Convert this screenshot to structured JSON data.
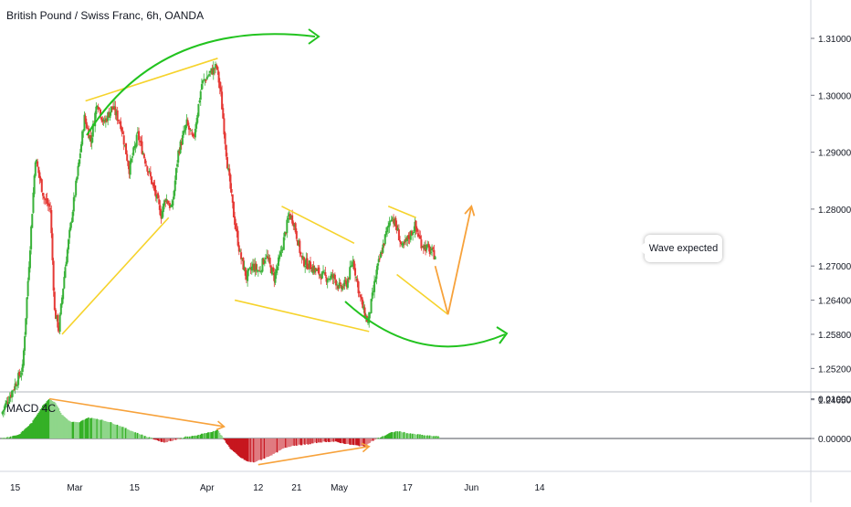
{
  "header": {
    "symbol_title": "British Pound / Swiss Franc, 6h, OANDA"
  },
  "indicator": {
    "title": "MACD 4C"
  },
  "annotation": {
    "note": "Wave expected"
  },
  "colors": {
    "up": "#26a69a",
    "up_bright": "#3ab23a",
    "down": "#e53935",
    "trend_line": "#f6d32d",
    "arc_green": "#22c31f",
    "projection": "#f7a23b",
    "macd_green": "#35b026",
    "macd_red": "#c7161f"
  },
  "chart_data": [
    {
      "type": "candlestick",
      "title": "British Pound / Swiss Franc, 6h, OANDA",
      "y_ticks": [
        "1.31000",
        "1.30000",
        "1.29000",
        "1.28000",
        "1.27000",
        "1.26400",
        "1.25800",
        "1.25200",
        "1.24650"
      ],
      "y_tick_values": [
        1.31,
        1.3,
        1.29,
        1.28,
        1.27,
        1.264,
        1.258,
        1.252,
        1.2465
      ],
      "x_ticks": [
        "15",
        "Mar",
        "15",
        "Apr",
        "12",
        "21",
        "May",
        "17",
        "Jun",
        "14"
      ],
      "x_tick_days": [
        15,
        29,
        43,
        60,
        72,
        81,
        91,
        107,
        122,
        138
      ],
      "ylim": [
        1.245,
        1.315
      ],
      "xlim": [
        10,
        145
      ],
      "price_path": [
        {
          "d": 12.0,
          "p": 1.244
        },
        {
          "d": 17.0,
          "p": 1.252
        },
        {
          "d": 20.0,
          "p": 1.289
        },
        {
          "d": 22.0,
          "p": 1.282
        },
        {
          "d": 23.5,
          "p": 1.28
        },
        {
          "d": 24.5,
          "p": 1.262
        },
        {
          "d": 25.5,
          "p": 1.259
        },
        {
          "d": 27.0,
          "p": 1.27
        },
        {
          "d": 30.0,
          "p": 1.287
        },
        {
          "d": 31.5,
          "p": 1.296
        },
        {
          "d": 33.0,
          "p": 1.292
        },
        {
          "d": 34.5,
          "p": 1.299
        },
        {
          "d": 36.0,
          "p": 1.295
        },
        {
          "d": 38.0,
          "p": 1.298
        },
        {
          "d": 40.0,
          "p": 1.295
        },
        {
          "d": 42.0,
          "p": 1.287
        },
        {
          "d": 44.0,
          "p": 1.293
        },
        {
          "d": 46.0,
          "p": 1.288
        },
        {
          "d": 48.0,
          "p": 1.283
        },
        {
          "d": 49.5,
          "p": 1.279
        },
        {
          "d": 50.5,
          "p": 1.282
        },
        {
          "d": 52.0,
          "p": 1.28
        },
        {
          "d": 53.5,
          "p": 1.29
        },
        {
          "d": 55.5,
          "p": 1.295
        },
        {
          "d": 57.0,
          "p": 1.292
        },
        {
          "d": 59.0,
          "p": 1.302
        },
        {
          "d": 61.0,
          "p": 1.304
        },
        {
          "d": 62.5,
          "p": 1.305
        },
        {
          "d": 63.5,
          "p": 1.3
        },
        {
          "d": 65.0,
          "p": 1.288
        },
        {
          "d": 66.5,
          "p": 1.279
        },
        {
          "d": 68.0,
          "p": 1.272
        },
        {
          "d": 69.5,
          "p": 1.268
        },
        {
          "d": 71.0,
          "p": 1.27
        },
        {
          "d": 72.5,
          "p": 1.269
        },
        {
          "d": 74.0,
          "p": 1.272
        },
        {
          "d": 76.0,
          "p": 1.268
        },
        {
          "d": 77.5,
          "p": 1.272
        },
        {
          "d": 79.5,
          "p": 1.279
        },
        {
          "d": 80.5,
          "p": 1.278
        },
        {
          "d": 82.5,
          "p": 1.271
        },
        {
          "d": 84.5,
          "p": 1.27
        },
        {
          "d": 86.0,
          "p": 1.269
        },
        {
          "d": 88.0,
          "p": 1.268
        },
        {
          "d": 90.0,
          "p": 1.268
        },
        {
          "d": 91.5,
          "p": 1.266
        },
        {
          "d": 93.0,
          "p": 1.267
        },
        {
          "d": 94.5,
          "p": 1.271
        },
        {
          "d": 96.0,
          "p": 1.265
        },
        {
          "d": 97.0,
          "p": 1.262
        },
        {
          "d": 98.0,
          "p": 1.26
        },
        {
          "d": 100.0,
          "p": 1.269
        },
        {
          "d": 102.0,
          "p": 1.275
        },
        {
          "d": 103.5,
          "p": 1.279
        },
        {
          "d": 105.0,
          "p": 1.276
        },
        {
          "d": 106.0,
          "p": 1.273
        },
        {
          "d": 107.5,
          "p": 1.275
        },
        {
          "d": 109.0,
          "p": 1.277
        },
        {
          "d": 110.5,
          "p": 1.274
        },
        {
          "d": 112.0,
          "p": 1.273
        },
        {
          "d": 113.5,
          "p": 1.272
        }
      ],
      "trend_lines": [
        {
          "from": [
            26.0,
            1.258
          ],
          "to": [
            51.0,
            1.2785
          ]
        },
        {
          "from": [
            31.5,
            1.299
          ],
          "to": [
            62.5,
            1.3065
          ]
        },
        {
          "from": [
            77.5,
            1.2805
          ],
          "to": [
            94.5,
            1.274
          ]
        },
        {
          "from": [
            66.5,
            1.264
          ],
          "to": [
            98.0,
            1.2585
          ]
        },
        {
          "from": [
            102.5,
            1.2805
          ],
          "to": [
            109.0,
            1.2785
          ]
        },
        {
          "from": [
            104.5,
            1.2685
          ],
          "to": [
            116.5,
            1.2615
          ]
        }
      ],
      "projection_path": [
        {
          "d": 113.5,
          "p": 1.27
        },
        {
          "d": 116.5,
          "p": 1.2615
        },
        {
          "d": 122.0,
          "p": 1.2805
        }
      ]
    },
    {
      "type": "histogram",
      "title": "MACD 4C",
      "y_ticks": [
        "0.01000",
        "0.00000"
      ],
      "y_tick_values": [
        0.01,
        0.0
      ],
      "ylim": [
        -0.0064,
        0.01025
      ],
      "profile": [
        {
          "d": 12.0,
          "v": 0.0
        },
        {
          "d": 16.0,
          "v": 0.001
        },
        {
          "d": 19.0,
          "v": 0.004
        },
        {
          "d": 21.5,
          "v": 0.0082
        },
        {
          "d": 23.0,
          "v": 0.01
        },
        {
          "d": 24.5,
          "v": 0.009
        },
        {
          "d": 26.0,
          "v": 0.006
        },
        {
          "d": 28.0,
          "v": 0.0042
        },
        {
          "d": 30.0,
          "v": 0.004
        },
        {
          "d": 32.0,
          "v": 0.0052
        },
        {
          "d": 34.0,
          "v": 0.005
        },
        {
          "d": 37.0,
          "v": 0.0042
        },
        {
          "d": 40.0,
          "v": 0.003
        },
        {
          "d": 43.0,
          "v": 0.0016
        },
        {
          "d": 46.0,
          "v": 0.0004
        },
        {
          "d": 48.0,
          "v": -0.0003
        },
        {
          "d": 50.0,
          "v": -0.001
        },
        {
          "d": 51.5,
          "v": -0.0006
        },
        {
          "d": 53.0,
          "v": -0.0002
        },
        {
          "d": 55.0,
          "v": 0.0004
        },
        {
          "d": 57.0,
          "v": 0.0006
        },
        {
          "d": 59.0,
          "v": 0.0012
        },
        {
          "d": 61.0,
          "v": 0.0016
        },
        {
          "d": 62.5,
          "v": 0.0022
        },
        {
          "d": 64.0,
          "v": -0.0002
        },
        {
          "d": 65.5,
          "v": -0.0025
        },
        {
          "d": 67.5,
          "v": -0.0045
        },
        {
          "d": 69.5,
          "v": -0.0058
        },
        {
          "d": 71.0,
          "v": -0.006
        },
        {
          "d": 73.0,
          "v": -0.0052
        },
        {
          "d": 75.5,
          "v": -0.004
        },
        {
          "d": 78.0,
          "v": -0.0025
        },
        {
          "d": 80.0,
          "v": -0.0018
        },
        {
          "d": 82.0,
          "v": -0.0016
        },
        {
          "d": 84.0,
          "v": -0.0014
        },
        {
          "d": 86.0,
          "v": -0.001
        },
        {
          "d": 88.0,
          "v": -0.0008
        },
        {
          "d": 90.0,
          "v": -0.0008
        },
        {
          "d": 92.0,
          "v": -0.0012
        },
        {
          "d": 94.0,
          "v": -0.0016
        },
        {
          "d": 95.5,
          "v": -0.0018
        },
        {
          "d": 97.0,
          "v": -0.002
        },
        {
          "d": 98.5,
          "v": -0.0008
        },
        {
          "d": 100.0,
          "v": 0.0
        },
        {
          "d": 101.5,
          "v": 0.0006
        },
        {
          "d": 103.0,
          "v": 0.0014
        },
        {
          "d": 104.5,
          "v": 0.0018
        },
        {
          "d": 106.0,
          "v": 0.0016
        },
        {
          "d": 107.5,
          "v": 0.0012
        },
        {
          "d": 109.5,
          "v": 0.001
        },
        {
          "d": 111.5,
          "v": 0.0007
        },
        {
          "d": 113.5,
          "v": 0.0006
        },
        {
          "d": 114.5,
          "v": 0.0004
        }
      ],
      "divergence_lines": [
        {
          "from": [
            23.0,
            0.01
          ],
          "to": [
            64.0,
            0.003
          ]
        },
        {
          "from": [
            72.0,
            -0.0066
          ],
          "to": [
            98.0,
            -0.002
          ]
        }
      ]
    }
  ]
}
